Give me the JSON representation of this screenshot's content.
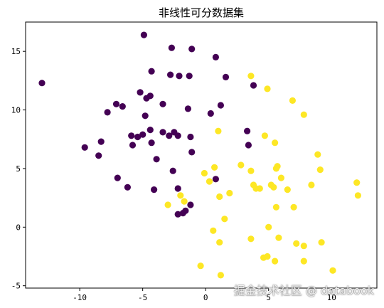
{
  "chart_data": {
    "type": "scatter",
    "title": "非线性可分数据集",
    "xlabel": "",
    "ylabel": "",
    "xlim": [
      -14.3,
      13.6
    ],
    "ylim": [
      -5.2,
      17.5
    ],
    "xticks": [
      -10,
      -5,
      0,
      5,
      10
    ],
    "yticks": [
      -5,
      0,
      5,
      10,
      15
    ],
    "grid": false,
    "colors": {
      "class0": "#440154",
      "class1": "#fde725"
    },
    "series": [
      {
        "color_key": "class0",
        "points": [
          [
            -13.0,
            12.3
          ],
          [
            -4.9,
            16.4
          ],
          [
            -2.7,
            15.3
          ],
          [
            -1.1,
            15.2
          ],
          [
            0.8,
            14.5
          ],
          [
            -4.3,
            13.3
          ],
          [
            -2.8,
            13.0
          ],
          [
            -2.1,
            12.9
          ],
          [
            -1.3,
            12.9
          ],
          [
            1.6,
            12.8
          ],
          [
            3.8,
            12.1
          ],
          [
            -5.2,
            11.5
          ],
          [
            -4.7,
            11.0
          ],
          [
            -4.4,
            11.2
          ],
          [
            -7.1,
            10.5
          ],
          [
            -6.6,
            10.3
          ],
          [
            -3.4,
            10.5
          ],
          [
            -1.4,
            10.1
          ],
          [
            1.2,
            10.4
          ],
          [
            0.4,
            9.7
          ],
          [
            -7.8,
            9.8
          ],
          [
            -4.8,
            9.5
          ],
          [
            -4.4,
            8.3
          ],
          [
            -3.4,
            8.1
          ],
          [
            -2.9,
            7.8
          ],
          [
            -2.5,
            8.1
          ],
          [
            -2.2,
            7.8
          ],
          [
            -1.2,
            7.7
          ],
          [
            -5.9,
            7.8
          ],
          [
            -5.4,
            7.7
          ],
          [
            -5.0,
            7.9
          ],
          [
            -8.3,
            7.3
          ],
          [
            -4.3,
            7.2
          ],
          [
            -5.8,
            7.0
          ],
          [
            3.3,
            8.2
          ],
          [
            3.4,
            7.0
          ],
          [
            -9.6,
            6.8
          ],
          [
            -8.5,
            6.1
          ],
          [
            -1.1,
            6.4
          ],
          [
            -3.9,
            5.8
          ],
          [
            -2.6,
            4.8
          ],
          [
            -7.0,
            4.2
          ],
          [
            0.8,
            4.1
          ],
          [
            -6.2,
            3.4
          ],
          [
            -4.1,
            3.2
          ],
          [
            -2.2,
            3.3
          ],
          [
            -1.2,
            1.9
          ],
          [
            -1.6,
            1.4
          ],
          [
            -1.8,
            1.2
          ],
          [
            -2.2,
            1.1
          ]
        ]
      },
      {
        "color_key": "class1",
        "points": [
          [
            3.6,
            12.9
          ],
          [
            4.9,
            11.8
          ],
          [
            6.9,
            10.8
          ],
          [
            7.8,
            9.6
          ],
          [
            1.0,
            8.2
          ],
          [
            4.7,
            7.8
          ],
          [
            5.5,
            7.2
          ],
          [
            8.9,
            6.2
          ],
          [
            2.8,
            5.3
          ],
          [
            0.7,
            5.1
          ],
          [
            5.7,
            5.2
          ],
          [
            5.6,
            5.0
          ],
          [
            9.1,
            4.9
          ],
          [
            3.6,
            4.8
          ],
          [
            -0.1,
            4.6
          ],
          [
            6.0,
            4.2
          ],
          [
            0.3,
            3.9
          ],
          [
            3.8,
            3.6
          ],
          [
            4.0,
            3.3
          ],
          [
            4.3,
            3.3
          ],
          [
            5.2,
            3.6
          ],
          [
            5.4,
            3.4
          ],
          [
            6.5,
            3.2
          ],
          [
            8.4,
            3.6
          ],
          [
            12.0,
            3.8
          ],
          [
            12.1,
            2.7
          ],
          [
            1.9,
            2.9
          ],
          [
            1.1,
            2.6
          ],
          [
            -2.0,
            2.7
          ],
          [
            -1.7,
            2.2
          ],
          [
            -3.0,
            1.9
          ],
          [
            5.6,
            1.7
          ],
          [
            7.0,
            1.7
          ],
          [
            1.5,
            0.7
          ],
          [
            5.0,
            0.0
          ],
          [
            0.6,
            -0.3
          ],
          [
            3.6,
            -1.0
          ],
          [
            5.8,
            -0.9
          ],
          [
            1.1,
            -1.3
          ],
          [
            7.2,
            -1.4
          ],
          [
            7.8,
            -1.6
          ],
          [
            9.2,
            -1.3
          ],
          [
            4.6,
            -2.6
          ],
          [
            4.9,
            -2.5
          ],
          [
            5.5,
            -2.9
          ],
          [
            7.8,
            -2.9
          ],
          [
            10.1,
            -3.7
          ],
          [
            -0.4,
            -3.3
          ],
          [
            1.2,
            -4.1
          ]
        ]
      }
    ]
  },
  "watermark": "掘金技术社区 @ databook"
}
